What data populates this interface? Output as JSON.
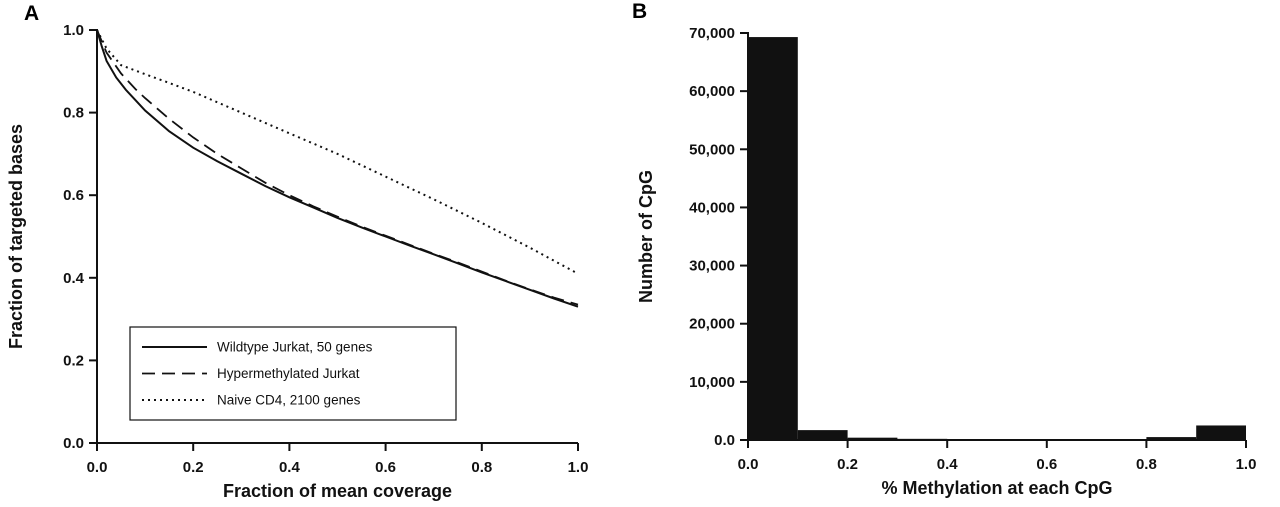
{
  "figure": {
    "background": "#ffffff",
    "panels": [
      {
        "label": "A"
      },
      {
        "label": "B"
      }
    ]
  },
  "chart_data": [
    {
      "type": "line",
      "panel": "A",
      "title": "",
      "xlabel": "Fraction of mean coverage",
      "ylabel": "Fraction of targeted bases",
      "xlim": [
        0.0,
        1.0
      ],
      "ylim": [
        0.0,
        1.0
      ],
      "xticks": [
        0.0,
        0.2,
        0.4,
        0.6,
        0.8,
        1.0
      ],
      "xtick_labels": [
        "0.0",
        "0.2",
        "0.4",
        "0.6",
        "0.8",
        "1.0"
      ],
      "yticks": [
        0.0,
        0.2,
        0.4,
        0.6,
        0.8,
        1.0
      ],
      "ytick_labels": [
        "0.0",
        "0.2",
        "0.4",
        "0.6",
        "0.8",
        "1.0"
      ],
      "grid": false,
      "color": "#111111",
      "legend": {
        "position": "lower-left",
        "border": true
      },
      "series": [
        {
          "name": "Wildtype Jurkat, 50 genes",
          "style": "solid",
          "x": [
            0,
            0.01,
            0.02,
            0.04,
            0.06,
            0.08,
            0.1,
            0.15,
            0.2,
            0.25,
            0.3,
            0.35,
            0.4,
            0.45,
            0.5,
            0.55,
            0.6,
            0.65,
            0.7,
            0.75,
            0.8,
            0.85,
            0.9,
            0.95,
            1.0
          ],
          "y": [
            1.0,
            0.96,
            0.925,
            0.885,
            0.855,
            0.83,
            0.805,
            0.755,
            0.715,
            0.682,
            0.652,
            0.622,
            0.595,
            0.57,
            0.545,
            0.522,
            0.5,
            0.478,
            0.457,
            0.435,
            0.413,
            0.392,
            0.371,
            0.35,
            0.33
          ]
        },
        {
          "name": "Hypermethylated Jurkat",
          "style": "dashed",
          "x": [
            0,
            0.02,
            0.05,
            0.08,
            0.1,
            0.15,
            0.2,
            0.25,
            0.3,
            0.35,
            0.4,
            0.45,
            0.5,
            0.55,
            0.6,
            0.65,
            0.7,
            0.75,
            0.8,
            0.85,
            0.9,
            0.95,
            1.0
          ],
          "y": [
            1.0,
            0.945,
            0.895,
            0.857,
            0.835,
            0.785,
            0.74,
            0.7,
            0.665,
            0.63,
            0.6,
            0.573,
            0.548,
            0.524,
            0.502,
            0.48,
            0.458,
            0.437,
            0.415,
            0.393,
            0.372,
            0.352,
            0.335
          ]
        },
        {
          "name": "Naive CD4, 2100 genes",
          "style": "dotted",
          "x": [
            0,
            0.02,
            0.05,
            0.1,
            0.15,
            0.2,
            0.3,
            0.4,
            0.5,
            0.6,
            0.7,
            0.8,
            0.9,
            1.0
          ],
          "y": [
            1.0,
            0.955,
            0.915,
            0.893,
            0.872,
            0.85,
            0.8,
            0.75,
            0.7,
            0.645,
            0.59,
            0.533,
            0.473,
            0.41
          ]
        }
      ]
    },
    {
      "type": "bar",
      "panel": "B",
      "title": "",
      "xlabel": "% Methylation at each CpG",
      "ylabel": "Number of CpG",
      "xlim": [
        0.0,
        1.0
      ],
      "ylim": [
        0,
        70000
      ],
      "xticks": [
        0.0,
        0.2,
        0.4,
        0.6,
        0.8,
        1.0
      ],
      "xtick_labels": [
        "0.0",
        "0.2",
        "0.4",
        "0.6",
        "0.8",
        "1.0"
      ],
      "yticks": [
        0,
        10000,
        20000,
        30000,
        40000,
        50000,
        60000,
        70000
      ],
      "ytick_labels": [
        "0.0",
        "10,000",
        "20,000",
        "30,000",
        "40,000",
        "50,000",
        "60,000",
        "70,000"
      ],
      "grid": false,
      "color": "#111111",
      "bar_color": "#111111",
      "bin_edges": [
        0.0,
        0.1,
        0.2,
        0.3,
        0.4,
        0.5,
        0.6,
        0.7,
        0.8,
        0.9,
        1.0
      ],
      "values": [
        69300,
        1700,
        400,
        200,
        120,
        100,
        100,
        150,
        500,
        2500
      ]
    }
  ]
}
